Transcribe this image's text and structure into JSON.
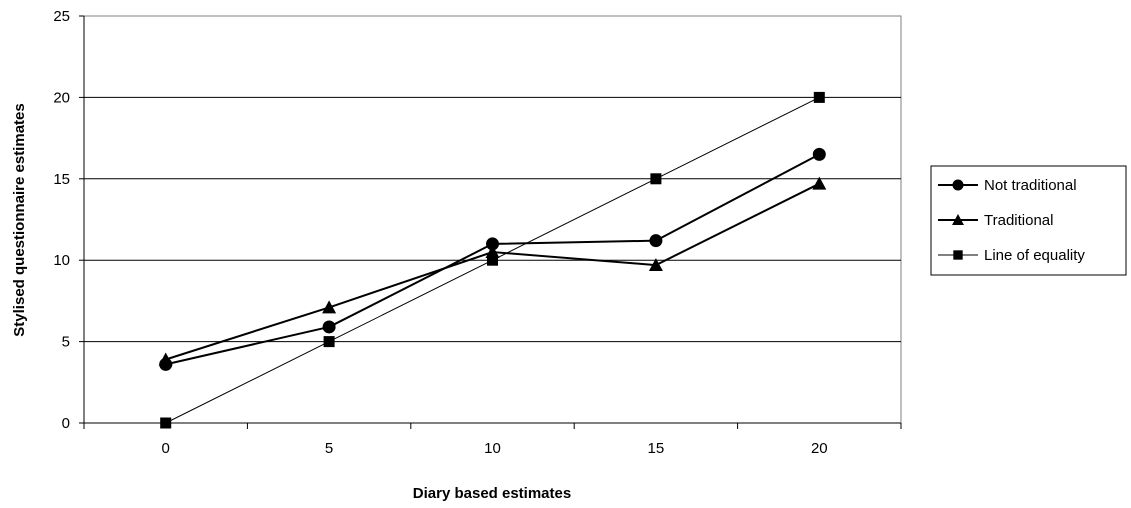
{
  "chart_data": {
    "type": "line",
    "title": "",
    "xlabel": "Diary based estimates",
    "ylabel": "Stylised questionnaire estimates",
    "x": [
      0,
      5,
      10,
      15,
      20
    ],
    "xlim": [
      -2.5,
      22.5
    ],
    "ylim": [
      0,
      25
    ],
    "xticks": [
      "0",
      "5",
      "10",
      "15",
      "20"
    ],
    "yticks": [
      "0",
      "5",
      "10",
      "15",
      "20",
      "25"
    ],
    "grid": "horizontal",
    "legend_position": "right",
    "series": [
      {
        "name": "Not traditional",
        "marker": "circle",
        "values": [
          3.6,
          5.9,
          11.0,
          11.2,
          16.5
        ]
      },
      {
        "name": "Traditional",
        "marker": "triangle",
        "values": [
          3.9,
          7.1,
          10.5,
          9.7,
          14.7
        ]
      },
      {
        "name": "Line of equality",
        "marker": "square",
        "values": [
          0,
          5,
          10,
          15,
          20
        ]
      }
    ]
  }
}
